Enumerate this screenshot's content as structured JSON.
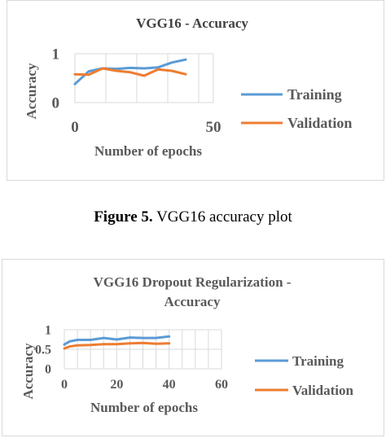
{
  "chart_data": [
    {
      "type": "line",
      "title": "VGG16 - Accuracy",
      "xlabel": "Number of epochs",
      "ylabel": "Accuracy",
      "xlim": [
        0,
        50
      ],
      "ylim": [
        0,
        1
      ],
      "xticks": [
        0,
        50
      ],
      "yticks": [
        0,
        1
      ],
      "grid": true,
      "legend_position": "right",
      "series": [
        {
          "name": "Training",
          "color": "#5B9BD5",
          "x": [
            0,
            5,
            10,
            15,
            20,
            25,
            30,
            35,
            40
          ],
          "y": [
            0.38,
            0.64,
            0.7,
            0.69,
            0.71,
            0.7,
            0.72,
            0.82,
            0.88
          ]
        },
        {
          "name": "Validation",
          "color": "#ED7D31",
          "x": [
            0,
            5,
            10,
            15,
            20,
            25,
            30,
            35,
            40
          ],
          "y": [
            0.58,
            0.57,
            0.7,
            0.65,
            0.62,
            0.55,
            0.68,
            0.65,
            0.58
          ]
        }
      ]
    },
    {
      "type": "line",
      "title": "VGG16 Dropout Regularization - Accuracy",
      "xlabel": "Number of epochs",
      "ylabel": "Accuracy",
      "xlim": [
        0,
        60
      ],
      "ylim": [
        0,
        1
      ],
      "xticks": [
        0,
        20,
        40,
        60
      ],
      "yticks": [
        0,
        0.5,
        1
      ],
      "ytick_labels": [
        "0",
        "0.5",
        "1"
      ],
      "grid": true,
      "legend_position": "right",
      "series": [
        {
          "name": "Training",
          "color": "#5B9BD5",
          "x": [
            0,
            2,
            5,
            10,
            15,
            20,
            25,
            30,
            35,
            40
          ],
          "y": [
            0.62,
            0.7,
            0.74,
            0.74,
            0.79,
            0.75,
            0.8,
            0.79,
            0.79,
            0.83
          ]
        },
        {
          "name": "Validation",
          "color": "#ED7D31",
          "x": [
            0,
            2,
            5,
            10,
            15,
            20,
            25,
            30,
            35,
            40
          ],
          "y": [
            0.52,
            0.57,
            0.6,
            0.61,
            0.63,
            0.63,
            0.65,
            0.66,
            0.64,
            0.65
          ]
        }
      ]
    }
  ],
  "caption": {
    "label": "Figure 5.",
    "text": " VGG16 accuracy plot"
  }
}
